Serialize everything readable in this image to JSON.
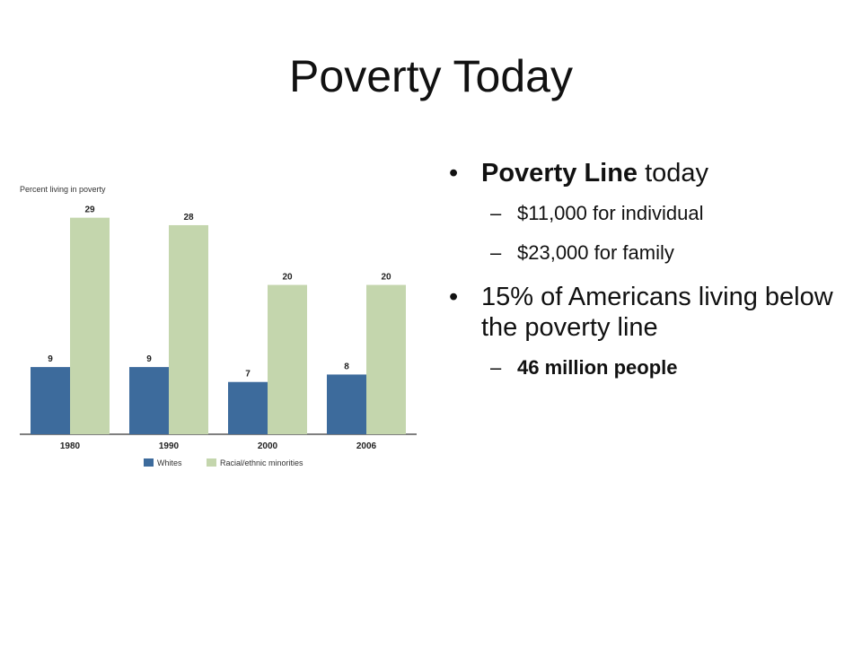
{
  "slide": {
    "title": "Poverty Today"
  },
  "bullets": {
    "line_today_bold": "Poverty Line",
    "line_today_rest": " today",
    "individual": "$11,000 for individual",
    "family": "$23,000 for family",
    "percent_line": "15% of Americans living below the poverty line",
    "million": "46 million people"
  },
  "chart_data": {
    "type": "bar",
    "ylabel": "Percent living in poverty",
    "categories": [
      "1980",
      "1990",
      "2000",
      "2006"
    ],
    "series": [
      {
        "name": "Whites",
        "values": [
          9,
          9,
          7,
          8
        ],
        "color": "#3d6b9c"
      },
      {
        "name": "Racial/ethnic minorities",
        "values": [
          29,
          28,
          20,
          20
        ],
        "color": "#c4d6ad"
      }
    ],
    "ylim": [
      0,
      31
    ],
    "grid": false,
    "legend": "bottom"
  }
}
